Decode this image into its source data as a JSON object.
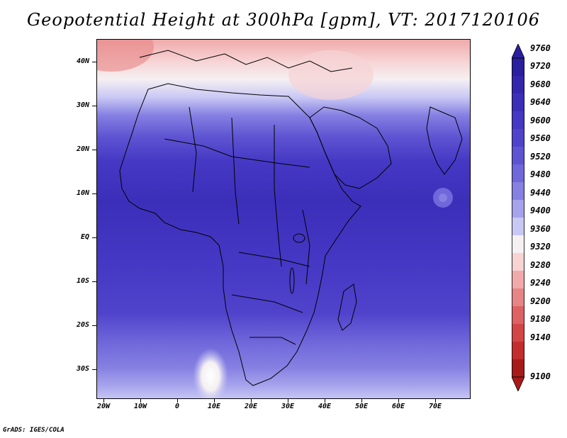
{
  "title": "Geopotential Height at 300hPa [gpm], VT: 2017120106",
  "footer": "GrADS: IGES/COLA",
  "map": {
    "lat_labels": [
      "40N",
      "30N",
      "20N",
      "10N",
      "EQ",
      "10S",
      "20S",
      "30S"
    ],
    "lon_labels": [
      "20W",
      "10W",
      "0",
      "10E",
      "20E",
      "30E",
      "40E",
      "50E",
      "60E",
      "70E"
    ]
  },
  "colorbar": {
    "labels": [
      "9760",
      "9720",
      "9680",
      "9640",
      "9600",
      "9560",
      "9520",
      "9480",
      "9440",
      "9400",
      "9360",
      "9320",
      "9280",
      "9240",
      "9200",
      "9180",
      "9140",
      "9100"
    ],
    "colors": [
      "#2a1f9e",
      "#3326ad",
      "#3b2fba",
      "#4438c4",
      "#5043cb",
      "#5e54d2",
      "#6f67da",
      "#8580e2",
      "#a6a3ec",
      "#c9c8f4",
      "#f5f0f2",
      "#f7d3d4",
      "#f0aaab",
      "#e78586",
      "#de6263",
      "#d44545",
      "#c42d2d",
      "#a81a1a"
    ]
  }
}
